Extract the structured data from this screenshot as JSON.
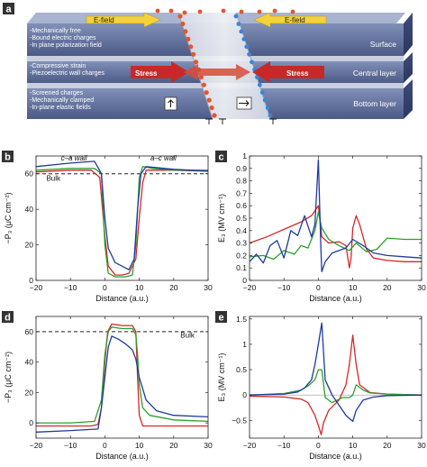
{
  "panel_a": {
    "label": "a",
    "layers": [
      {
        "name": "Surface",
        "notes": [
          "-Mechanically free",
          "-Bound electric charges",
          "-In plane polarization field"
        ],
        "tags": [
          "E-field",
          "E-field"
        ]
      },
      {
        "name": "Central layer",
        "notes": [
          "-Compressive strain",
          "-Piezoelectric wall charges"
        ],
        "tags": [
          "Stress",
          "Stress"
        ]
      },
      {
        "name": "Bottom layer",
        "notes": [
          "-Screened charges",
          "-Mechanically clamped",
          "-In-plane elastic fields"
        ],
        "tags": []
      }
    ],
    "colors": {
      "layer": "#5b6a94",
      "layer_dark": "#3a4670",
      "efield": "#f4d23c",
      "stress": "#c8282a",
      "charge_pos": "#e4562a",
      "charge_neg": "#3b86d6"
    }
  },
  "chart_data": [
    {
      "panel": "b",
      "type": "line",
      "xlabel": "Distance (a.u.)",
      "ylabel": "−P₃ (μC cm⁻²)",
      "xlim": [
        -20,
        30
      ],
      "ylim": [
        0,
        70
      ],
      "xticks": [
        -20,
        -10,
        0,
        10,
        20,
        30
      ],
      "yticks": [
        0,
        20,
        40,
        60
      ],
      "annotations": [
        "c–a wall",
        "a–c wall",
        "Bulk"
      ],
      "reference_line": {
        "y": 60,
        "label": "Bulk"
      },
      "series": [
        {
          "color": "#d62728",
          "points": [
            [
              -20,
              61
            ],
            [
              -10,
              62
            ],
            [
              -4,
              62
            ],
            [
              -1.5,
              58
            ],
            [
              0,
              25
            ],
            [
              1,
              8
            ],
            [
              3,
              3
            ],
            [
              5,
              3
            ],
            [
              7,
              4
            ],
            [
              9,
              12
            ],
            [
              10,
              35
            ],
            [
              11,
              55
            ],
            [
              12,
              62
            ],
            [
              20,
              62
            ],
            [
              30,
              61.5
            ]
          ]
        },
        {
          "color": "#2ca02c",
          "points": [
            [
              -20,
              62
            ],
            [
              -10,
              63
            ],
            [
              -3,
              63
            ],
            [
              -1,
              60
            ],
            [
              0,
              20
            ],
            [
              1,
              4
            ],
            [
              3,
              2
            ],
            [
              6,
              2
            ],
            [
              8,
              3
            ],
            [
              9,
              20
            ],
            [
              10,
              58
            ],
            [
              11,
              64
            ],
            [
              14,
              63
            ],
            [
              20,
              62
            ],
            [
              30,
              62
            ]
          ]
        },
        {
          "color": "#1f3a9e",
          "points": [
            [
              -20,
              64
            ],
            [
              -10,
              66
            ],
            [
              -3,
              67
            ],
            [
              -1,
              60
            ],
            [
              0,
              35
            ],
            [
              1,
              18
            ],
            [
              3,
              10
            ],
            [
              5,
              8
            ],
            [
              7,
              6
            ],
            [
              8.5,
              12
            ],
            [
              9.5,
              40
            ],
            [
              10.5,
              60
            ],
            [
              12,
              64
            ],
            [
              20,
              62.5
            ],
            [
              30,
              61.5
            ]
          ]
        }
      ]
    },
    {
      "panel": "c",
      "type": "line",
      "xlabel": "Distance (a.u.)",
      "ylabel": "E₃ (MV cm⁻¹)",
      "xlim": [
        -20,
        30
      ],
      "ylim": [
        0,
        1.0
      ],
      "xticks": [
        -20,
        -10,
        0,
        10,
        20,
        30
      ],
      "yticks": [
        0,
        0.1,
        0.2,
        0.3,
        0.4,
        0.5,
        0.6,
        0.7,
        0.8,
        0.9,
        1.0
      ],
      "series": [
        {
          "color": "#d62728",
          "points": [
            [
              -20,
              0.3
            ],
            [
              -15,
              0.35
            ],
            [
              -10,
              0.41
            ],
            [
              -5,
              0.47
            ],
            [
              -2,
              0.52
            ],
            [
              -0.5,
              0.58
            ],
            [
              0,
              0.6
            ],
            [
              1,
              0.35
            ],
            [
              3,
              0.3
            ],
            [
              6,
              0.31
            ],
            [
              8,
              0.28
            ],
            [
              9,
              0.1
            ],
            [
              9.5,
              0.18
            ],
            [
              10,
              0.42
            ],
            [
              11,
              0.52
            ],
            [
              12,
              0.45
            ],
            [
              14,
              0.25
            ],
            [
              16,
              0.18
            ],
            [
              20,
              0.16
            ],
            [
              25,
              0.15
            ],
            [
              30,
              0.15
            ]
          ]
        },
        {
          "color": "#2ca02c",
          "points": [
            [
              -20,
              0.19
            ],
            [
              -16,
              0.2
            ],
            [
              -13,
              0.17
            ],
            [
              -10,
              0.24
            ],
            [
              -7,
              0.21
            ],
            [
              -5,
              0.28
            ],
            [
              -3,
              0.26
            ],
            [
              -1,
              0.4
            ],
            [
              0,
              0.55
            ],
            [
              1,
              0.42
            ],
            [
              3,
              0.33
            ],
            [
              6,
              0.28
            ],
            [
              9,
              0.24
            ],
            [
              11,
              0.3
            ],
            [
              14,
              0.23
            ],
            [
              17,
              0.25
            ],
            [
              20,
              0.34
            ],
            [
              25,
              0.33
            ],
            [
              30,
              0.33
            ]
          ]
        },
        {
          "color": "#1f3a9e",
          "points": [
            [
              -20,
              0.15
            ],
            [
              -18,
              0.21
            ],
            [
              -16,
              0.14
            ],
            [
              -14,
              0.28
            ],
            [
              -12,
              0.32
            ],
            [
              -10,
              0.18
            ],
            [
              -8,
              0.4
            ],
            [
              -6,
              0.36
            ],
            [
              -4,
              0.52
            ],
            [
              -2,
              0.35
            ],
            [
              -1,
              0.45
            ],
            [
              0,
              0.97
            ],
            [
              0.7,
              0.28
            ],
            [
              1,
              0.07
            ],
            [
              2,
              0.15
            ],
            [
              4,
              0.22
            ],
            [
              6,
              0.24
            ],
            [
              8,
              0.26
            ],
            [
              10,
              0.33
            ],
            [
              13,
              0.28
            ],
            [
              16,
              0.22
            ],
            [
              20,
              0.2
            ],
            [
              25,
              0.19
            ],
            [
              30,
              0.18
            ]
          ]
        }
      ]
    },
    {
      "panel": "d",
      "type": "line",
      "xlabel": "Distance (a.u.)",
      "ylabel": "−P₃ (μC cm⁻²)",
      "xlim": [
        -20,
        30
      ],
      "ylim": [
        -10,
        70
      ],
      "xticks": [
        -20,
        -10,
        0,
        10,
        20,
        30
      ],
      "yticks": [
        0,
        20,
        40,
        60
      ],
      "annotations": [
        "Bulk"
      ],
      "reference_line": {
        "y": 60,
        "label": "Bulk"
      },
      "series": [
        {
          "color": "#d62728",
          "points": [
            [
              -20,
              -2
            ],
            [
              -10,
              -2
            ],
            [
              -4,
              -2
            ],
            [
              -2,
              -1
            ],
            [
              -1,
              10
            ],
            [
              0,
              40
            ],
            [
              0.8,
              60
            ],
            [
              2,
              65
            ],
            [
              5,
              64
            ],
            [
              8,
              64
            ],
            [
              9,
              60
            ],
            [
              9.5,
              30
            ],
            [
              10,
              5
            ],
            [
              11,
              -2
            ],
            [
              20,
              -2
            ],
            [
              30,
              -2
            ]
          ]
        },
        {
          "color": "#2ca02c",
          "points": [
            [
              -20,
              0
            ],
            [
              -10,
              0
            ],
            [
              -3,
              1
            ],
            [
              -1,
              15
            ],
            [
              0,
              45
            ],
            [
              1,
              60
            ],
            [
              2,
              63
            ],
            [
              5,
              62
            ],
            [
              8,
              62
            ],
            [
              9,
              58
            ],
            [
              9.5,
              45
            ],
            [
              10,
              25
            ],
            [
              11,
              10
            ],
            [
              13,
              5
            ],
            [
              20,
              2
            ],
            [
              30,
              1
            ]
          ]
        },
        {
          "color": "#1f3a9e",
          "points": [
            [
              -20,
              -6
            ],
            [
              -10,
              -5
            ],
            [
              -2,
              -4
            ],
            [
              -1,
              10
            ],
            [
              0,
              30
            ],
            [
              1,
              50
            ],
            [
              2,
              57
            ],
            [
              4,
              55
            ],
            [
              6,
              52
            ],
            [
              8,
              48
            ],
            [
              9,
              42
            ],
            [
              10,
              30
            ],
            [
              12,
              15
            ],
            [
              15,
              8
            ],
            [
              20,
              5
            ],
            [
              30,
              4
            ]
          ]
        }
      ]
    },
    {
      "panel": "e",
      "type": "line",
      "xlabel": "Distance (a.u.)",
      "ylabel": "E₃ (MV cm⁻¹)",
      "xlim": [
        -20,
        30
      ],
      "ylim": [
        -0.85,
        1.55
      ],
      "xticks": [
        -20,
        -10,
        0,
        10,
        20,
        30
      ],
      "yticks": [
        -0.5,
        0,
        0.5,
        1.0,
        1.5
      ],
      "series": [
        {
          "color": "#d62728",
          "points": [
            [
              -20,
              -0.02
            ],
            [
              -10,
              -0.04
            ],
            [
              -5,
              -0.08
            ],
            [
              -3,
              -0.15
            ],
            [
              -1,
              -0.4
            ],
            [
              0,
              -0.6
            ],
            [
              0.8,
              -0.78
            ],
            [
              1.5,
              -0.55
            ],
            [
              3,
              -0.3
            ],
            [
              6,
              -0.1
            ],
            [
              8,
              0.2
            ],
            [
              9,
              0.6
            ],
            [
              10,
              1.18
            ],
            [
              11,
              0.6
            ],
            [
              12,
              0.2
            ],
            [
              15,
              0.05
            ],
            [
              20,
              0.02
            ],
            [
              30,
              0.0
            ]
          ]
        },
        {
          "color": "#2ca02c",
          "points": [
            [
              -20,
              0.0
            ],
            [
              -10,
              0.03
            ],
            [
              -5,
              0.1
            ],
            [
              -3,
              0.18
            ],
            [
              -1,
              0.3
            ],
            [
              0,
              0.5
            ],
            [
              1,
              0.5
            ],
            [
              2,
              -0.05
            ],
            [
              4,
              -0.15
            ],
            [
              7,
              -0.05
            ],
            [
              9,
              -0.05
            ],
            [
              10,
              0.0
            ],
            [
              11,
              0.2
            ],
            [
              13,
              0.1
            ],
            [
              15,
              0.04
            ],
            [
              20,
              0.02
            ],
            [
              30,
              0.0
            ]
          ]
        },
        {
          "color": "#1f3a9e",
          "points": [
            [
              -20,
              0.0
            ],
            [
              -10,
              0.02
            ],
            [
              -6,
              0.06
            ],
            [
              -4,
              0.14
            ],
            [
              -2,
              0.3
            ],
            [
              -1,
              0.6
            ],
            [
              0,
              1.0
            ],
            [
              1,
              1.42
            ],
            [
              2,
              0.3
            ],
            [
              4,
              0.0
            ],
            [
              6,
              -0.2
            ],
            [
              8,
              -0.4
            ],
            [
              10,
              -0.52
            ],
            [
              11,
              -0.3
            ],
            [
              13,
              -0.1
            ],
            [
              16,
              -0.04
            ],
            [
              20,
              -0.01
            ],
            [
              30,
              0.0
            ]
          ]
        }
      ]
    }
  ]
}
